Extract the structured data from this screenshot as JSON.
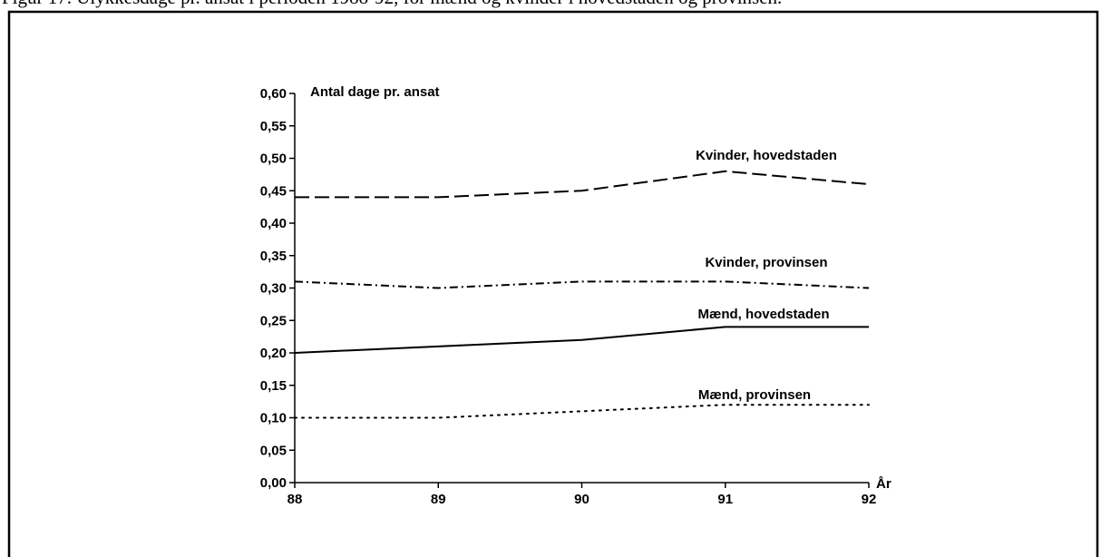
{
  "caption": "Figur 17. Ulykkesdage pr. ansat i perioden 1988-92, for mænd og kvinder i hovedstaden og provinsen.",
  "chart_data": {
    "type": "line",
    "title": "",
    "ylabel": "Antal dage pr. ansat",
    "xlabel": "År",
    "x": [
      88,
      89,
      90,
      91,
      92
    ],
    "x_tick_labels": [
      "88",
      "89",
      "90",
      "91",
      "92"
    ],
    "ylim": [
      0,
      0.6
    ],
    "y_ticks": [
      0,
      0.05,
      0.1,
      0.15,
      0.2,
      0.25,
      0.3,
      0.35,
      0.4,
      0.45,
      0.5,
      0.55,
      0.6
    ],
    "y_tick_labels": [
      "0,00",
      "0,05",
      "0,10",
      "0,15",
      "0,20",
      "0,25",
      "0,30",
      "0,35",
      "0,40",
      "0,45",
      "0,50",
      "0,55",
      "0,60"
    ],
    "grid": false,
    "legend": "inline labels",
    "series": [
      {
        "name": "Kvinder, hovedstaden",
        "values": [
          0.44,
          0.44,
          0.45,
          0.48,
          0.46
        ],
        "dash": "dashed",
        "color": "#000000"
      },
      {
        "name": "Kvinder, provinsen",
        "values": [
          0.31,
          0.3,
          0.31,
          0.31,
          0.3
        ],
        "dash": "dash-dot",
        "color": "#000000"
      },
      {
        "name": "Mænd, hovedstaden",
        "values": [
          0.2,
          0.21,
          0.22,
          0.24,
          0.24
        ],
        "dash": "solid",
        "color": "#000000"
      },
      {
        "name": "Mænd, provinsen",
        "values": [
          0.1,
          0.1,
          0.11,
          0.12,
          0.12
        ],
        "dash": "dotted",
        "color": "#000000"
      }
    ]
  }
}
